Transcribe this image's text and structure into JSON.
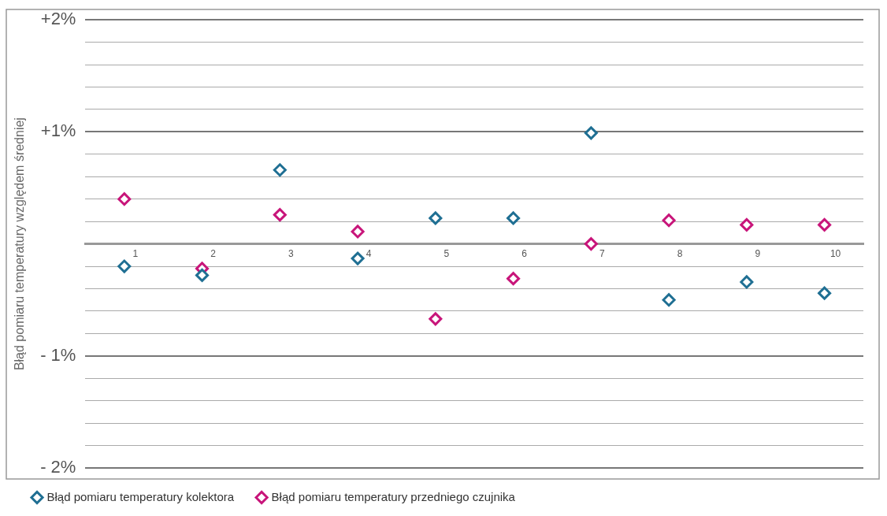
{
  "chart_data": {
    "type": "scatter",
    "ylabel": "Błąd pomiaru temperatury względem średniej",
    "categories": [
      "1",
      "2",
      "3",
      "4",
      "5",
      "6",
      "7",
      "8",
      "9",
      "10"
    ],
    "series": [
      {
        "name": "Błąd pomiaru temperatury kolektora",
        "color": "#1f6f93",
        "values": [
          -0.2,
          -0.28,
          0.66,
          -0.13,
          0.23,
          0.23,
          0.99,
          -0.5,
          -0.34,
          -0.44
        ]
      },
      {
        "name": "Błąd pomiaru temperatury przedniego czujnika",
        "color": "#c8157a",
        "values": [
          0.4,
          -0.22,
          0.26,
          0.11,
          -0.67,
          -0.31,
          0.0,
          0.21,
          0.17,
          0.17
        ]
      }
    ],
    "ylim": [
      -2,
      2
    ],
    "yticks": [
      {
        "value": -2,
        "label": "- 2%"
      },
      {
        "value": -1.8,
        "label": null
      },
      {
        "value": -1.6,
        "label": null
      },
      {
        "value": -1.4,
        "label": null
      },
      {
        "value": -1.2,
        "label": null
      },
      {
        "value": -1,
        "label": "- 1%"
      },
      {
        "value": -0.8,
        "label": null
      },
      {
        "value": -0.6,
        "label": null
      },
      {
        "value": -0.4,
        "label": null
      },
      {
        "value": -0.2,
        "label": null
      },
      {
        "value": 0,
        "label": null
      },
      {
        "value": 0.2,
        "label": null
      },
      {
        "value": 0.4,
        "label": null
      },
      {
        "value": 0.6,
        "label": null
      },
      {
        "value": 0.8,
        "label": null
      },
      {
        "value": 1,
        "label": "+1%"
      },
      {
        "value": 1.2,
        "label": null
      },
      {
        "value": 1.4,
        "label": null
      },
      {
        "value": 1.6,
        "label": null
      },
      {
        "value": 1.8,
        "label": null
      },
      {
        "value": 2,
        "label": "+2%"
      }
    ],
    "grid": "y",
    "legend": "bottom",
    "marker": "diamond"
  }
}
